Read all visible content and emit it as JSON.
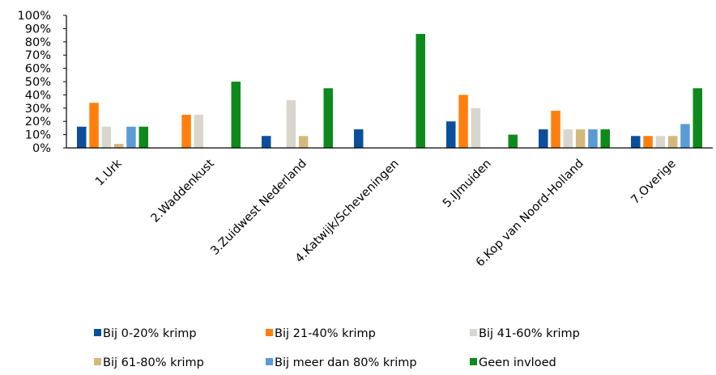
{
  "chart_data": {
    "type": "bar",
    "title": "",
    "xlabel": "",
    "ylabel": "",
    "ylim": [
      0,
      100
    ],
    "yticks": [
      "0%",
      "10%",
      "20%",
      "30%",
      "40%",
      "50%",
      "60%",
      "70%",
      "80%",
      "90%",
      "100%"
    ],
    "grid": false,
    "legend_position": "bottom",
    "categories": [
      "1.Urk",
      "2.Waddenkust",
      "3.Zuidwest Nederland",
      "4.Katwijk/Scheveningen",
      "5.IJmuiden",
      "6.Kop van Noord-Holland",
      "7.Overige"
    ],
    "series": [
      {
        "name": "Bij 0-20% krimp",
        "color": "#0b4f9c",
        "values": [
          16,
          0,
          9,
          14,
          20,
          14,
          9
        ]
      },
      {
        "name": "Bij 21-40% krimp",
        "color": "#ff7f0e",
        "values": [
          34,
          25,
          0,
          0,
          40,
          28,
          9
        ]
      },
      {
        "name": "Bij 41-60% krimp",
        "color": "#d9d6ce",
        "values": [
          16,
          25,
          36,
          0,
          30,
          14,
          9
        ]
      },
      {
        "name": "Bij 61-80% krimp",
        "color": "#d4b97c",
        "values": [
          3,
          0,
          9,
          0,
          0,
          14,
          9
        ]
      },
      {
        "name": "Bij meer dan 80% krimp",
        "color": "#5b9bd5",
        "values": [
          16,
          0,
          0,
          0,
          0,
          14,
          18
        ]
      },
      {
        "name": "Geen invloed",
        "color": "#0e8a1c",
        "values": [
          16,
          50,
          45,
          86,
          10,
          14,
          45
        ]
      }
    ]
  }
}
